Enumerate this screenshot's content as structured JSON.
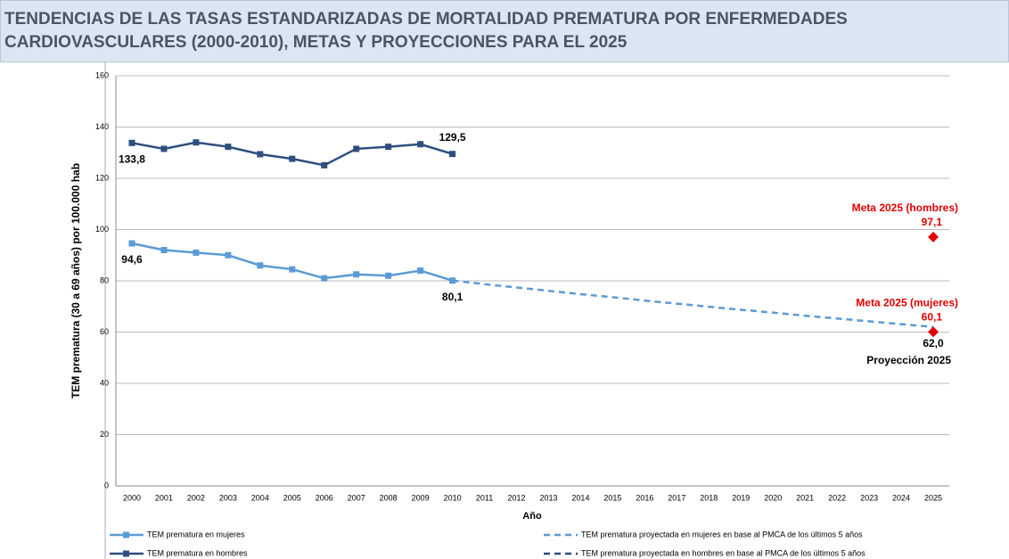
{
  "chart_data": {
    "type": "line",
    "title": "TENDENCIAS DE LAS TASAS ESTANDARIZADAS DE MORTALIDAD PREMATURA POR ENFERMEDADES CARDIOVASCULARES (2000-2010), METAS Y PROYECCIONES PARA EL 2025",
    "y_label": "TEM prematura (30 a 69 años) por 100.000 hab",
    "x_label": "Año",
    "categories": [
      "2000",
      "2001",
      "2002",
      "2003",
      "2004",
      "2005",
      "2006",
      "2007",
      "2008",
      "2009",
      "2010",
      "2011",
      "2012",
      "2013",
      "2014",
      "2015",
      "2016",
      "2017",
      "2018",
      "2019",
      "2020",
      "2021",
      "2022",
      "2023",
      "2024",
      "2025"
    ],
    "ylim": [
      0,
      160
    ],
    "yticks": [
      0,
      20,
      40,
      60,
      80,
      100,
      120,
      140,
      160
    ],
    "grid": true,
    "series": [
      {
        "name": "TEM prematura en mujeres",
        "color": "#5b9bd5",
        "dashed": false,
        "marker": "square",
        "values": [
          94.6,
          92,
          91,
          90,
          86,
          84.5,
          81,
          82.5,
          82,
          84,
          80.1,
          null,
          null,
          null,
          null,
          null,
          null,
          null,
          null,
          null,
          null,
          null,
          null,
          null,
          null,
          null
        ],
        "value_labels": [
          "94,6",
          null,
          null,
          null,
          null,
          null,
          null,
          null,
          null,
          null,
          "80,1",
          null,
          null,
          null,
          null,
          null,
          null,
          null,
          null,
          null,
          null,
          null,
          null,
          null,
          null,
          null
        ]
      },
      {
        "name": "TEM prematura en hombres",
        "color": "#2e4e7e",
        "dashed": false,
        "marker": "square",
        "values": [
          133.8,
          131.5,
          134,
          132.3,
          129.4,
          127.6,
          125.1,
          131.5,
          132.3,
          133.3,
          129.5,
          null,
          null,
          null,
          null,
          null,
          null,
          null,
          null,
          null,
          null,
          null,
          null,
          null,
          null,
          null
        ],
        "value_labels": [
          "133,8",
          null,
          null,
          null,
          null,
          null,
          null,
          null,
          null,
          null,
          "129,5",
          null,
          null,
          null,
          null,
          null,
          null,
          null,
          null,
          null,
          null,
          null,
          null,
          null,
          null,
          null
        ]
      },
      {
        "name": "TEM prematura proyectada en mujeres en base al PMCA de los últimos 5 años",
        "color": "#5b9bd5",
        "dashed": true,
        "marker": "none",
        "values": [
          null,
          null,
          null,
          null,
          null,
          null,
          null,
          null,
          null,
          null,
          80.1,
          78.7,
          77.4,
          76.1,
          74.8,
          73.6,
          72.3,
          71.1,
          69.9,
          68.7,
          67.6,
          66.4,
          65.3,
          64.2,
          63.1,
          62.0
        ],
        "value_labels": [
          null,
          null,
          null,
          null,
          null,
          null,
          null,
          null,
          null,
          null,
          null,
          null,
          null,
          null,
          null,
          null,
          null,
          null,
          null,
          null,
          null,
          null,
          null,
          null,
          null,
          "62,0"
        ]
      },
      {
        "name": "TEM prematura proyectada en hombres en base al PMCA de los últimos 5 años",
        "color": "#2e4e7e",
        "dashed": true,
        "marker": "none",
        "values": [
          null,
          null,
          null,
          null,
          null,
          null,
          null,
          null,
          null,
          null,
          null,
          null,
          null,
          null,
          null,
          null,
          null,
          null,
          null,
          null,
          null,
          null,
          null,
          null,
          null,
          null
        ]
      }
    ],
    "targets": [
      {
        "label": "Meta 2025 (hombres)",
        "x": "2025",
        "value": 97.1,
        "value_label": "97,1",
        "color": "#e00000"
      },
      {
        "label": "Meta 2025 (mujeres)",
        "x": "2025",
        "value": 60.1,
        "value_label": "60,1",
        "color": "#e00000"
      }
    ],
    "annotations": [
      "Proyección 2025"
    ]
  }
}
